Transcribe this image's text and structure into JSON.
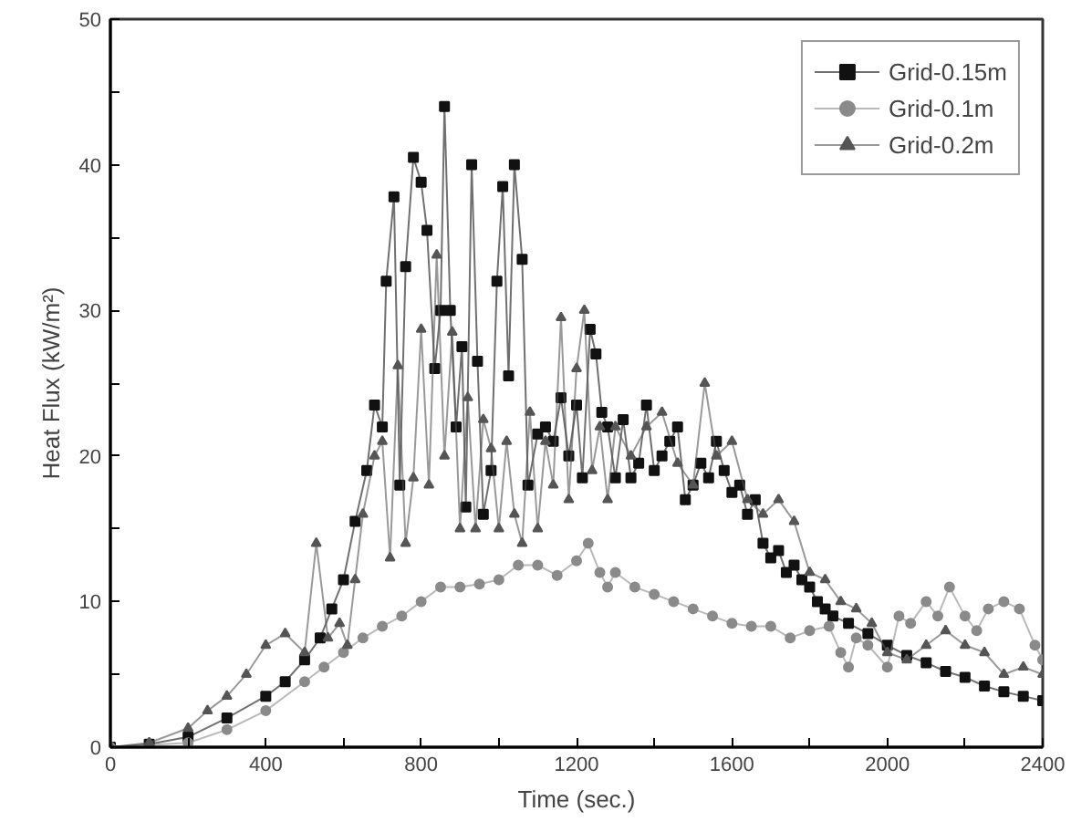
{
  "chart_data": {
    "type": "line",
    "xlabel": "Time (sec.)",
    "ylabel": "Heat Flux (kW/m²)",
    "xlim": [
      0,
      2400
    ],
    "ylim": [
      0,
      50
    ],
    "xticks": [
      0,
      {
        "value": 200,
        "label": null
      },
      400,
      {
        "value": 600,
        "label": null
      },
      800,
      {
        "value": 1000,
        "label": null
      },
      1200,
      {
        "value": 1400,
        "label": null
      },
      1600,
      {
        "value": 1800,
        "label": null
      },
      2000,
      {
        "value": 2200,
        "label": null
      },
      2400
    ],
    "yticks": [
      0,
      {
        "value": 5,
        "label": null
      },
      10,
      {
        "value": 15,
        "label": null
      },
      20,
      {
        "value": 25,
        "label": null
      },
      30,
      {
        "value": 35,
        "label": null
      },
      40,
      {
        "value": 45,
        "label": null
      },
      50
    ],
    "grid": false,
    "legend": "top right",
    "series": [
      {
        "name": "Grid-0.15m",
        "color": "#111111",
        "marker": "square",
        "x": [
          0,
          100,
          200,
          300,
          400,
          450,
          500,
          540,
          570,
          600,
          630,
          660,
          680,
          700,
          710,
          730,
          745,
          760,
          780,
          800,
          815,
          835,
          850,
          860,
          875,
          890,
          905,
          915,
          930,
          945,
          960,
          980,
          995,
          1010,
          1025,
          1040,
          1060,
          1075,
          1100,
          1120,
          1140,
          1160,
          1180,
          1200,
          1215,
          1235,
          1250,
          1265,
          1280,
          1300,
          1320,
          1340,
          1360,
          1380,
          1400,
          1420,
          1440,
          1460,
          1480,
          1500,
          1520,
          1540,
          1560,
          1580,
          1600,
          1620,
          1640,
          1660,
          1680,
          1700,
          1720,
          1740,
          1760,
          1780,
          1800,
          1820,
          1840,
          1860,
          1900,
          1950,
          2000,
          2050,
          2100,
          2150,
          2200,
          2250,
          2300,
          2350,
          2400
        ],
        "values": [
          0,
          0.2,
          0.7,
          2,
          3.5,
          4.5,
          6,
          7.5,
          9.5,
          11.5,
          15.5,
          19,
          23.5,
          22,
          32,
          37.8,
          18,
          33,
          40.5,
          38.8,
          35.5,
          26,
          30,
          44,
          30,
          22,
          27.5,
          16.5,
          40,
          26.5,
          16,
          19,
          32,
          38.5,
          25.5,
          40,
          33.5,
          18,
          21.5,
          22,
          21,
          24,
          20,
          23.5,
          18.5,
          28.7,
          27,
          23,
          22,
          18.5,
          22.5,
          18.5,
          19.5,
          23.5,
          19,
          20,
          21,
          22,
          17,
          18,
          19.5,
          18.5,
          21,
          19,
          17.5,
          18,
          16,
          17,
          14,
          13,
          13.5,
          12,
          12.5,
          11.5,
          11,
          10,
          9.5,
          9,
          8.5,
          7.8,
          7,
          6.3,
          5.8,
          5.2,
          4.8,
          4.2,
          3.8,
          3.5,
          3.2
        ]
      },
      {
        "name": "Grid-0.1m",
        "color": "#8a8a8a",
        "marker": "circle",
        "x": [
          0,
          200,
          300,
          400,
          500,
          550,
          600,
          650,
          700,
          750,
          800,
          850,
          900,
          950,
          1000,
          1050,
          1100,
          1150,
          1200,
          1230,
          1260,
          1280,
          1300,
          1350,
          1400,
          1450,
          1500,
          1550,
          1600,
          1650,
          1700,
          1750,
          1800,
          1850,
          1880,
          1900,
          1920,
          1950,
          2000,
          2030,
          2060,
          2100,
          2130,
          2160,
          2200,
          2230,
          2260,
          2300,
          2340,
          2380,
          2400
        ],
        "values": [
          0,
          0.3,
          1.2,
          2.5,
          4.5,
          5.5,
          6.5,
          7.5,
          8.3,
          9,
          10,
          11,
          11,
          11.2,
          11.5,
          12.5,
          12.5,
          11.8,
          12.8,
          14,
          12,
          11,
          12,
          11,
          10.5,
          10,
          9.5,
          9,
          8.5,
          8.3,
          8.3,
          7.5,
          8,
          8.3,
          6.5,
          5.5,
          7.5,
          7,
          5.5,
          9,
          8.5,
          10,
          9,
          11,
          9,
          8,
          9.5,
          10,
          9.5,
          7,
          6
        ]
      },
      {
        "name": "Grid-0.2m",
        "color": "#555555",
        "marker": "triangle",
        "x": [
          0,
          100,
          200,
          250,
          300,
          350,
          400,
          450,
          500,
          530,
          560,
          590,
          610,
          630,
          650,
          680,
          700,
          720,
          740,
          760,
          780,
          800,
          820,
          840,
          860,
          880,
          900,
          920,
          940,
          960,
          980,
          1000,
          1020,
          1040,
          1060,
          1080,
          1100,
          1120,
          1140,
          1160,
          1180,
          1200,
          1220,
          1240,
          1260,
          1280,
          1300,
          1340,
          1380,
          1420,
          1460,
          1500,
          1530,
          1560,
          1600,
          1640,
          1680,
          1720,
          1760,
          1800,
          1840,
          1880,
          1920,
          1960,
          2000,
          2050,
          2100,
          2150,
          2200,
          2250,
          2300,
          2350,
          2400
        ],
        "values": [
          0,
          0.3,
          1.3,
          2.5,
          3.5,
          5,
          7,
          7.8,
          6.5,
          14,
          7.5,
          8.5,
          7,
          11.5,
          16,
          20,
          21,
          13,
          26.2,
          14,
          18.5,
          28.7,
          18,
          33.8,
          20,
          28.5,
          15,
          24,
          15,
          22.5,
          20.5,
          15,
          21,
          16,
          14,
          23,
          15,
          21,
          18,
          29.5,
          17,
          26,
          30,
          19,
          22,
          17,
          22,
          20,
          22,
          23,
          19.5,
          18,
          25,
          20,
          21,
          17,
          16,
          17,
          15.5,
          12,
          11.5,
          10,
          9.5,
          8.5,
          6.5,
          6,
          7,
          8,
          7,
          6.5,
          5,
          5.5,
          5
        ]
      }
    ]
  }
}
